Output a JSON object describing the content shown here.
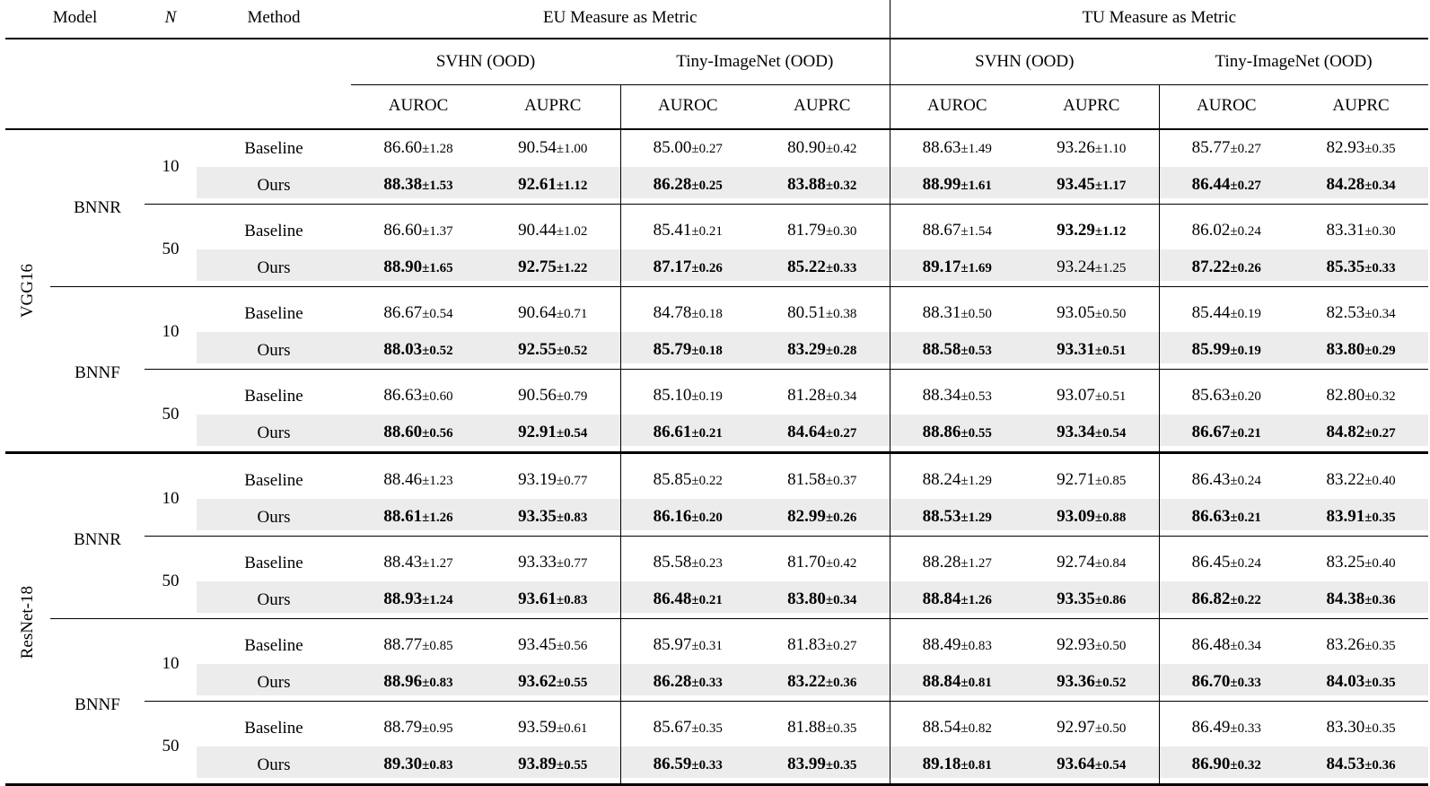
{
  "header": {
    "model": "Model",
    "n": "N",
    "method": "Method",
    "eu_group": "EU Measure as Metric",
    "tu_group": "TU Measure as Metric",
    "eu_svhn": "SVHN (OOD)",
    "eu_tiny": "Tiny-ImageNet (OOD)",
    "tu_svhn": "SVHN (OOD)",
    "tu_tiny": "Tiny-ImageNet (OOD)",
    "metrics": [
      "AUROC",
      "AUPRC",
      "AUROC",
      "AUPRC",
      "AUROC",
      "AUPRC",
      "AUROC",
      "AUPRC"
    ]
  },
  "symbols": {
    "plus_minus": "±"
  },
  "colors": {
    "highlight_row_bg": "#ececec",
    "rule": "#000000",
    "text": "#000000"
  },
  "rows": [
    {
      "model": "VGG16",
      "model_span": 8,
      "bnn": "BNNR",
      "bnn_span": 4,
      "n": "10",
      "n_span": 2,
      "method": "Baseline",
      "shaded": false,
      "sep": "none",
      "means": [
        "86.60",
        "90.54",
        "85.00",
        "80.90",
        "88.63",
        "93.26",
        "85.77",
        "82.93"
      ],
      "stds": [
        "1.28",
        "1.00",
        "0.27",
        "0.42",
        "1.49",
        "1.10",
        "0.27",
        "0.35"
      ],
      "bold": [
        false,
        false,
        false,
        false,
        false,
        false,
        false,
        false
      ]
    },
    {
      "method": "Ours",
      "shaded": true,
      "sep": "none",
      "means": [
        "88.38",
        "92.61",
        "86.28",
        "83.88",
        "88.99",
        "93.45",
        "86.44",
        "84.28"
      ],
      "stds": [
        "1.53",
        "1.12",
        "0.25",
        "0.32",
        "1.61",
        "1.17",
        "0.27",
        "0.34"
      ],
      "bold": [
        true,
        true,
        true,
        true,
        true,
        true,
        true,
        true
      ]
    },
    {
      "n": "50",
      "n_span": 2,
      "method": "Baseline",
      "shaded": false,
      "sep": "n",
      "means": [
        "86.60",
        "90.44",
        "85.41",
        "81.79",
        "88.67",
        "93.29",
        "86.02",
        "83.31"
      ],
      "stds": [
        "1.37",
        "1.02",
        "0.21",
        "0.30",
        "1.54",
        "1.12",
        "0.24",
        "0.30"
      ],
      "bold": [
        false,
        false,
        false,
        false,
        false,
        true,
        false,
        false
      ]
    },
    {
      "method": "Ours",
      "shaded": true,
      "sep": "none",
      "means": [
        "88.90",
        "92.75",
        "87.17",
        "85.22",
        "89.17",
        "93.24",
        "87.22",
        "85.35"
      ],
      "stds": [
        "1.65",
        "1.22",
        "0.26",
        "0.33",
        "1.69",
        "1.25",
        "0.26",
        "0.33"
      ],
      "bold": [
        true,
        true,
        true,
        true,
        true,
        false,
        true,
        true
      ]
    },
    {
      "bnn": "BNNF",
      "bnn_span": 4,
      "n": "10",
      "n_span": 2,
      "method": "Baseline",
      "shaded": false,
      "sep": "bnn",
      "means": [
        "86.67",
        "90.64",
        "84.78",
        "80.51",
        "88.31",
        "93.05",
        "85.44",
        "82.53"
      ],
      "stds": [
        "0.54",
        "0.71",
        "0.18",
        "0.38",
        "0.50",
        "0.50",
        "0.19",
        "0.34"
      ],
      "bold": [
        false,
        false,
        false,
        false,
        false,
        false,
        false,
        false
      ]
    },
    {
      "method": "Ours",
      "shaded": true,
      "sep": "none",
      "means": [
        "88.03",
        "92.55",
        "85.79",
        "83.29",
        "88.58",
        "93.31",
        "85.99",
        "83.80"
      ],
      "stds": [
        "0.52",
        "0.52",
        "0.18",
        "0.28",
        "0.53",
        "0.51",
        "0.19",
        "0.29"
      ],
      "bold": [
        true,
        true,
        true,
        true,
        true,
        true,
        true,
        true
      ]
    },
    {
      "n": "50",
      "n_span": 2,
      "method": "Baseline",
      "shaded": false,
      "sep": "n",
      "means": [
        "86.63",
        "90.56",
        "85.10",
        "81.28",
        "88.34",
        "93.07",
        "85.63",
        "82.80"
      ],
      "stds": [
        "0.60",
        "0.79",
        "0.19",
        "0.34",
        "0.53",
        "0.51",
        "0.20",
        "0.32"
      ],
      "bold": [
        false,
        false,
        false,
        false,
        false,
        false,
        false,
        false
      ]
    },
    {
      "method": "Ours",
      "shaded": true,
      "sep": "none",
      "means": [
        "88.60",
        "92.91",
        "86.61",
        "84.64",
        "88.86",
        "93.34",
        "86.67",
        "84.82"
      ],
      "stds": [
        "0.56",
        "0.54",
        "0.21",
        "0.27",
        "0.55",
        "0.54",
        "0.21",
        "0.27"
      ],
      "bold": [
        true,
        true,
        true,
        true,
        true,
        true,
        true,
        true
      ]
    },
    {
      "model": "ResNet-18",
      "model_span": 8,
      "bnn": "BNNR",
      "bnn_span": 4,
      "n": "10",
      "n_span": 2,
      "method": "Baseline",
      "shaded": false,
      "sep": "model",
      "means": [
        "88.46",
        "93.19",
        "85.85",
        "81.58",
        "88.24",
        "92.71",
        "86.43",
        "83.22"
      ],
      "stds": [
        "1.23",
        "0.77",
        "0.22",
        "0.37",
        "1.29",
        "0.85",
        "0.24",
        "0.40"
      ],
      "bold": [
        false,
        false,
        false,
        false,
        false,
        false,
        false,
        false
      ]
    },
    {
      "method": "Ours",
      "shaded": true,
      "sep": "none",
      "means": [
        "88.61",
        "93.35",
        "86.16",
        "82.99",
        "88.53",
        "93.09",
        "86.63",
        "83.91"
      ],
      "stds": [
        "1.26",
        "0.83",
        "0.20",
        "0.26",
        "1.29",
        "0.88",
        "0.21",
        "0.35"
      ],
      "bold": [
        true,
        true,
        true,
        true,
        true,
        true,
        true,
        true
      ]
    },
    {
      "n": "50",
      "n_span": 2,
      "method": "Baseline",
      "shaded": false,
      "sep": "n",
      "means": [
        "88.43",
        "93.33",
        "85.58",
        "81.70",
        "88.28",
        "92.74",
        "86.45",
        "83.25"
      ],
      "stds": [
        "1.27",
        "0.77",
        "0.23",
        "0.42",
        "1.27",
        "0.84",
        "0.24",
        "0.40"
      ],
      "bold": [
        false,
        false,
        false,
        false,
        false,
        false,
        false,
        false
      ]
    },
    {
      "method": "Ours",
      "shaded": true,
      "sep": "none",
      "means": [
        "88.93",
        "93.61",
        "86.48",
        "83.80",
        "88.84",
        "93.35",
        "86.82",
        "84.38"
      ],
      "stds": [
        "1.24",
        "0.83",
        "0.21",
        "0.34",
        "1.26",
        "0.86",
        "0.22",
        "0.36"
      ],
      "bold": [
        true,
        true,
        true,
        true,
        true,
        true,
        true,
        true
      ]
    },
    {
      "bnn": "BNNF",
      "bnn_span": 4,
      "n": "10",
      "n_span": 2,
      "method": "Baseline",
      "shaded": false,
      "sep": "bnn",
      "means": [
        "88.77",
        "93.45",
        "85.97",
        "81.83",
        "88.49",
        "92.93",
        "86.48",
        "83.26"
      ],
      "stds": [
        "0.85",
        "0.56",
        "0.31",
        "0.27",
        "0.83",
        "0.50",
        "0.34",
        "0.35"
      ],
      "bold": [
        false,
        false,
        false,
        false,
        false,
        false,
        false,
        false
      ]
    },
    {
      "method": "Ours",
      "shaded": true,
      "sep": "none",
      "means": [
        "88.96",
        "93.62",
        "86.28",
        "83.22",
        "88.84",
        "93.36",
        "86.70",
        "84.03"
      ],
      "stds": [
        "0.83",
        "0.55",
        "0.33",
        "0.36",
        "0.81",
        "0.52",
        "0.33",
        "0.35"
      ],
      "bold": [
        true,
        true,
        true,
        true,
        true,
        true,
        true,
        true
      ]
    },
    {
      "n": "50",
      "n_span": 2,
      "method": "Baseline",
      "shaded": false,
      "sep": "n",
      "means": [
        "88.79",
        "93.59",
        "85.67",
        "81.88",
        "88.54",
        "92.97",
        "86.49",
        "83.30"
      ],
      "stds": [
        "0.95",
        "0.61",
        "0.35",
        "0.35",
        "0.82",
        "0.50",
        "0.33",
        "0.35"
      ],
      "bold": [
        false,
        false,
        false,
        false,
        false,
        false,
        false,
        false
      ]
    },
    {
      "method": "Ours",
      "shaded": true,
      "sep": "none",
      "means": [
        "89.30",
        "93.89",
        "86.59",
        "83.99",
        "89.18",
        "93.64",
        "86.90",
        "84.53"
      ],
      "stds": [
        "0.83",
        "0.55",
        "0.33",
        "0.35",
        "0.81",
        "0.54",
        "0.32",
        "0.36"
      ],
      "bold": [
        true,
        true,
        true,
        true,
        true,
        true,
        true,
        true
      ]
    }
  ]
}
